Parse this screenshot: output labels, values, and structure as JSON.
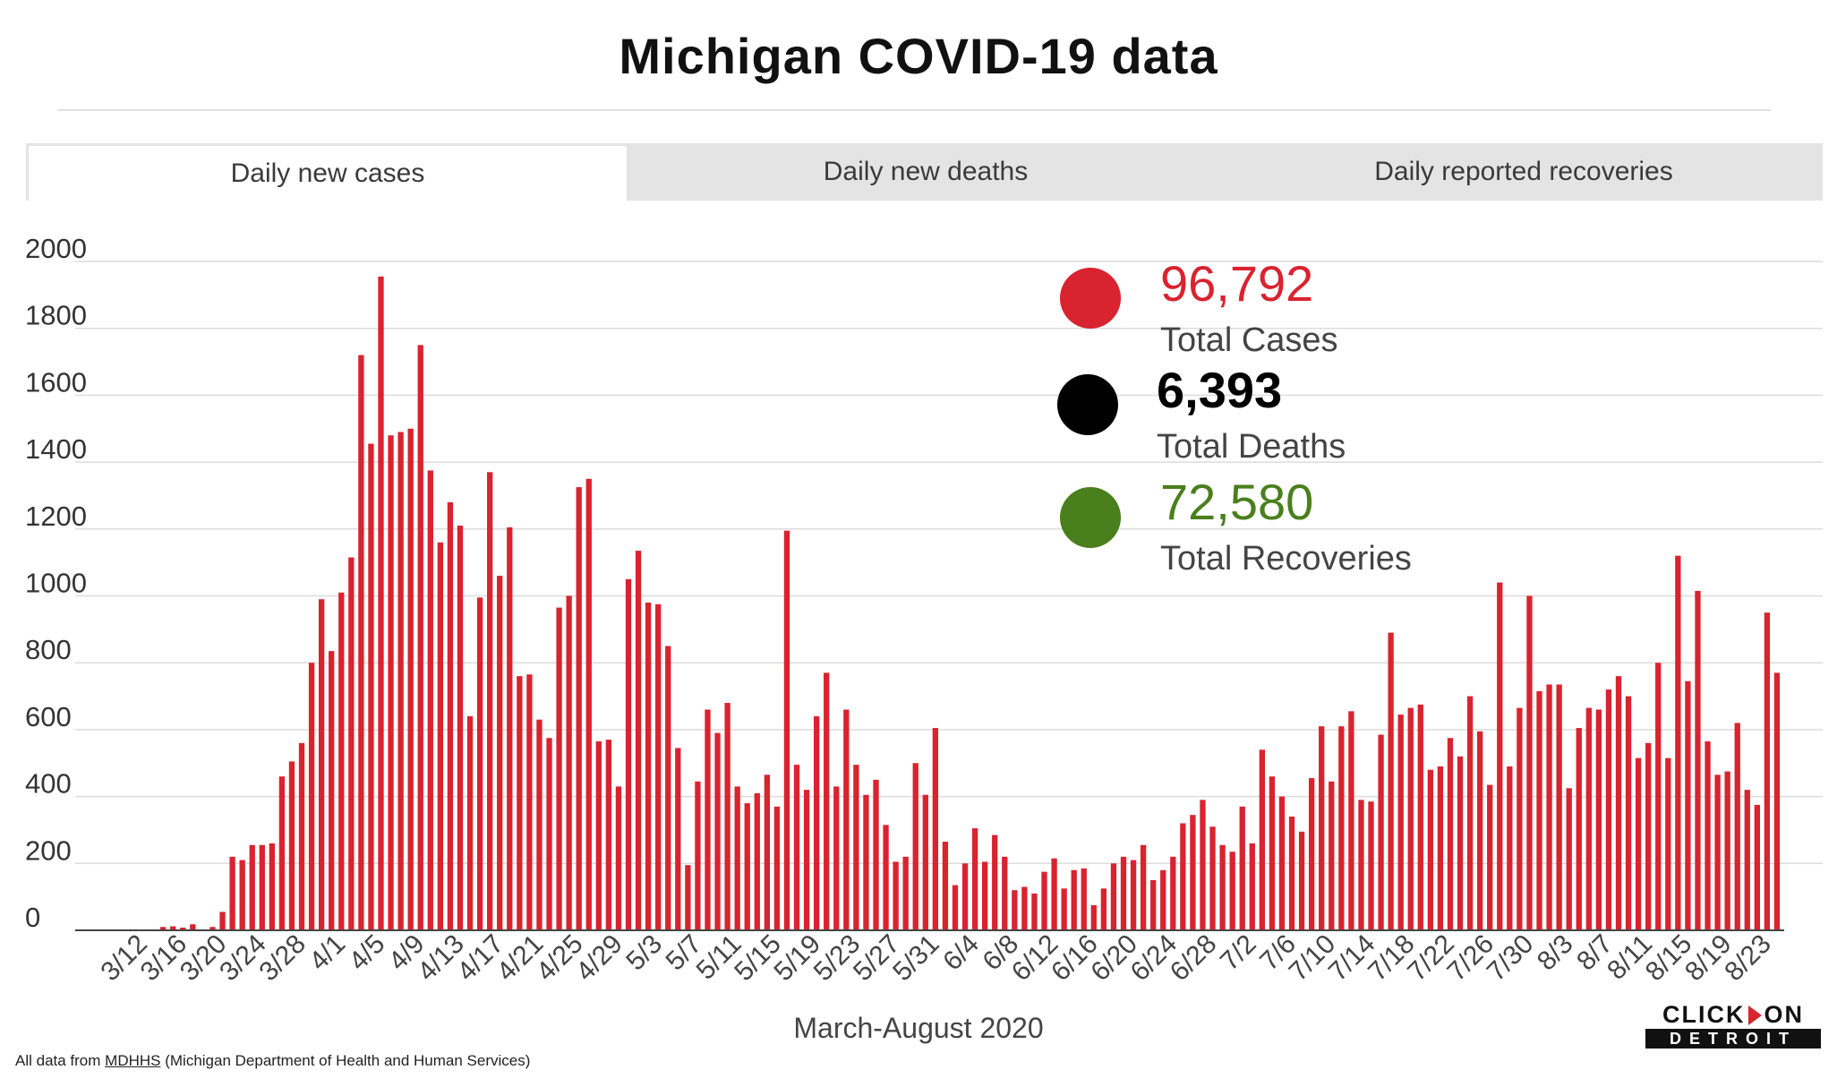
{
  "title": "Michigan COVID-19 data",
  "tabs": [
    {
      "label": "Daily new cases",
      "active": true
    },
    {
      "label": "Daily new deaths",
      "active": false
    },
    {
      "label": "Daily reported recoveries",
      "active": false
    }
  ],
  "stats": {
    "cases": {
      "value": "96,792",
      "label": "Total Cases",
      "color": "#d9232f"
    },
    "deaths": {
      "value": "6,393",
      "label": "Total Deaths",
      "color": "#000000"
    },
    "recoveries": {
      "value": "72,580",
      "label": "Total Recoveries",
      "color": "#4a7f1d"
    }
  },
  "source": {
    "prefix": "All data from ",
    "link": "MDHHS",
    "suffix": " (Michigan Department of Health and Human Services)"
  },
  "logo": {
    "top_left": "CLICK",
    "top_right": "ON",
    "bottom": "DETROIT"
  },
  "chart_data": {
    "type": "bar",
    "title": "",
    "xlabel": "March-August 2020",
    "ylabel": "",
    "ylim": [
      0,
      2000
    ],
    "yticks": [
      0,
      200,
      400,
      600,
      800,
      1000,
      1200,
      1400,
      1600,
      1800,
      2000
    ],
    "bar_color": "#d9232f",
    "grid": true,
    "start_date": "3/11",
    "tick_labels": [
      "3/12",
      "3/16",
      "3/20",
      "3/24",
      "3/28",
      "4/1",
      "4/5",
      "4/9",
      "4/13",
      "4/17",
      "4/21",
      "4/25",
      "4/29",
      "5/3",
      "5/7",
      "5/11",
      "5/15",
      "5/19",
      "5/23",
      "5/27",
      "5/31",
      "6/4",
      "6/8",
      "6/12",
      "6/16",
      "6/20",
      "6/24",
      "6/28",
      "7/2",
      "7/6",
      "7/10",
      "7/14",
      "7/18",
      "7/22",
      "7/26",
      "7/30",
      "8/3",
      "8/7",
      "8/11",
      "8/15",
      "8/19",
      "8/23"
    ],
    "values": [
      0,
      2,
      0,
      10,
      12,
      8,
      18,
      0,
      10,
      55,
      220,
      210,
      255,
      255,
      260,
      460,
      505,
      560,
      800,
      990,
      835,
      1010,
      1115,
      1720,
      1455,
      1955,
      1480,
      1490,
      1500,
      1750,
      1375,
      1160,
      1280,
      1210,
      640,
      995,
      1370,
      1060,
      1205,
      760,
      765,
      630,
      575,
      965,
      1000,
      1325,
      1350,
      565,
      570,
      430,
      1050,
      1135,
      980,
      975,
      850,
      545,
      195,
      445,
      660,
      590,
      680,
      430,
      380,
      410,
      465,
      370,
      1195,
      495,
      420,
      640,
      770,
      430,
      660,
      495,
      405,
      450,
      315,
      205,
      220,
      500,
      405,
      605,
      265,
      135,
      200,
      305,
      205,
      285,
      220,
      120,
      130,
      110,
      175,
      215,
      125,
      180,
      185,
      75,
      125,
      200,
      220,
      210,
      255,
      150,
      180,
      220,
      320,
      345,
      390,
      310,
      255,
      235,
      370,
      260,
      540,
      460,
      400,
      340,
      295,
      455,
      610,
      445,
      610,
      655,
      390,
      385,
      585,
      890,
      645,
      665,
      675,
      480,
      490,
      575,
      520,
      700,
      595,
      435,
      1040,
      490,
      665,
      1000,
      715,
      735,
      735,
      425,
      605,
      665,
      660,
      720,
      760,
      700,
      515,
      560,
      800,
      515,
      1120,
      745,
      1015,
      565,
      465,
      475,
      620,
      420,
      375,
      950,
      770
    ]
  }
}
